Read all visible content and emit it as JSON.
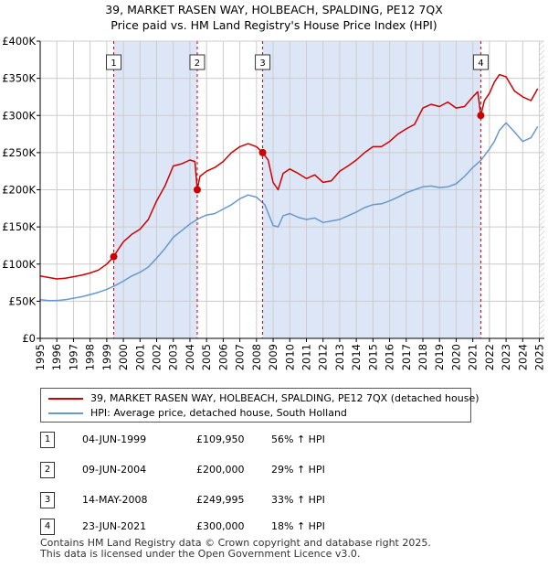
{
  "title_line1": "39, MARKET RASEN WAY, HOLBEACH, SPALDING, PE12 7QX",
  "title_line2": "Price paid vs. HM Land Registry's House Price Index (HPI)",
  "colors": {
    "property": "#cc0000",
    "hpi": "#6699cc",
    "shade": "#dde6f7",
    "grid": "#cccccc",
    "marker_line": "#cc0000"
  },
  "legend": {
    "property_label": "39, MARKET RASEN WAY, HOLBEACH, SPALDING, PE12 7QX (detached house)",
    "hpi_label": "HPI: Average price, detached house, South Holland"
  },
  "sales": [
    {
      "num": "1",
      "date": "04-JUN-1999",
      "price": "£109,950",
      "hpi": "56% ↑ HPI"
    },
    {
      "num": "2",
      "date": "09-JUN-2004",
      "price": "£200,000",
      "hpi": "29% ↑ HPI"
    },
    {
      "num": "3",
      "date": "14-MAY-2008",
      "price": "£249,995",
      "hpi": "33% ↑ HPI"
    },
    {
      "num": "4",
      "date": "23-JUN-2021",
      "price": "£300,000",
      "hpi": "18% ↑ HPI"
    }
  ],
  "footer_line1": "Contains HM Land Registry data © Crown copyright and database right 2025.",
  "footer_line2": "This data is licensed under the Open Government Licence v3.0.",
  "chart_data": {
    "type": "line",
    "xlim": [
      1995,
      2025.3
    ],
    "ylim": [
      0,
      400000
    ],
    "y_ticks": [
      0,
      50000,
      100000,
      150000,
      200000,
      250000,
      300000,
      350000,
      400000
    ],
    "y_tick_labels": [
      "£0",
      "£50K",
      "£100K",
      "£150K",
      "£200K",
      "£250K",
      "£300K",
      "£350K",
      "£400K"
    ],
    "x_ticks": [
      1995,
      1996,
      1997,
      1998,
      1999,
      2000,
      2001,
      2002,
      2003,
      2004,
      2005,
      2006,
      2007,
      2008,
      2009,
      2010,
      2011,
      2012,
      2013,
      2014,
      2015,
      2016,
      2017,
      2018,
      2019,
      2020,
      2021,
      2022,
      2023,
      2024,
      2025
    ],
    "shaded_ranges": [
      [
        1999.42,
        2004.44
      ],
      [
        2008.37,
        2021.48
      ]
    ],
    "hatch_from": 2025.0,
    "sale_points": [
      {
        "label": "1",
        "x": 1999.42,
        "y": 109950
      },
      {
        "label": "2",
        "x": 2004.44,
        "y": 200000
      },
      {
        "label": "3",
        "x": 2008.37,
        "y": 249995
      },
      {
        "label": "4",
        "x": 2021.48,
        "y": 300000
      }
    ],
    "series": [
      {
        "name": "39, MARKET RASEN WAY, HOLBEACH, SPALDING, PE12 7QX (detached house)",
        "x": [
          1995,
          1995.5,
          1996,
          1996.5,
          1997,
          1997.5,
          1998,
          1998.5,
          1999,
          1999.42,
          1999.7,
          2000,
          2000.5,
          2001,
          2001.5,
          2002,
          2002.5,
          2003,
          2003.5,
          2004,
          2004.3,
          2004.44,
          2004.6,
          2005,
          2005.5,
          2006,
          2006.5,
          2007,
          2007.5,
          2008,
          2008.37,
          2008.7,
          2009,
          2009.3,
          2009.6,
          2010,
          2010.5,
          2011,
          2011.5,
          2012,
          2012.5,
          2013,
          2013.5,
          2014,
          2014.5,
          2015,
          2015.5,
          2016,
          2016.5,
          2017,
          2017.5,
          2018,
          2018.5,
          2019,
          2019.5,
          2020,
          2020.5,
          2021,
          2021.3,
          2021.48,
          2021.7,
          2022,
          2022.3,
          2022.6,
          2023,
          2023.5,
          2024,
          2024.5,
          2024.9
        ],
        "y": [
          84000,
          82000,
          80000,
          81000,
          83000,
          85000,
          88000,
          92000,
          100000,
          109950,
          120000,
          130000,
          140000,
          147000,
          160000,
          185000,
          205000,
          232000,
          235000,
          240000,
          238000,
          200000,
          218000,
          225000,
          230000,
          238000,
          250000,
          258000,
          262000,
          258000,
          249995,
          240000,
          210000,
          200000,
          222000,
          228000,
          222000,
          215000,
          220000,
          210000,
          212000,
          225000,
          232000,
          240000,
          250000,
          258000,
          258000,
          265000,
          275000,
          282000,
          288000,
          310000,
          315000,
          312000,
          318000,
          310000,
          312000,
          325000,
          332000,
          300000,
          320000,
          330000,
          345000,
          355000,
          352000,
          333000,
          325000,
          320000,
          336000
        ]
      },
      {
        "name": "HPI: Average price, detached house, South Holland",
        "x": [
          1995,
          1995.5,
          1996,
          1996.5,
          1997,
          1997.5,
          1998,
          1998.5,
          1999,
          1999.5,
          2000,
          2000.5,
          2001,
          2001.5,
          2002,
          2002.5,
          2003,
          2003.5,
          2004,
          2004.5,
          2005,
          2005.5,
          2006,
          2006.5,
          2007,
          2007.5,
          2008,
          2008.5,
          2009,
          2009.3,
          2009.6,
          2010,
          2010.5,
          2011,
          2011.5,
          2012,
          2012.5,
          2013,
          2013.5,
          2014,
          2014.5,
          2015,
          2015.5,
          2016,
          2016.5,
          2017,
          2017.5,
          2018,
          2018.5,
          2019,
          2019.5,
          2020,
          2020.5,
          2021,
          2021.5,
          2022,
          2022.3,
          2022.6,
          2023,
          2023.5,
          2024,
          2024.5,
          2024.9
        ],
        "y": [
          52000,
          51000,
          51000,
          52000,
          54000,
          56000,
          59000,
          62000,
          66000,
          71000,
          77000,
          84000,
          89000,
          96000,
          108000,
          121000,
          136000,
          145000,
          154000,
          161000,
          166000,
          168000,
          174000,
          180000,
          188000,
          193000,
          190000,
          180000,
          152000,
          150000,
          165000,
          168000,
          163000,
          160000,
          162000,
          156000,
          158000,
          160000,
          165000,
          170000,
          176000,
          180000,
          181000,
          185000,
          190000,
          196000,
          200000,
          204000,
          205000,
          203000,
          204000,
          208000,
          218000,
          230000,
          240000,
          255000,
          265000,
          280000,
          290000,
          278000,
          265000,
          270000,
          285000
        ]
      }
    ]
  }
}
